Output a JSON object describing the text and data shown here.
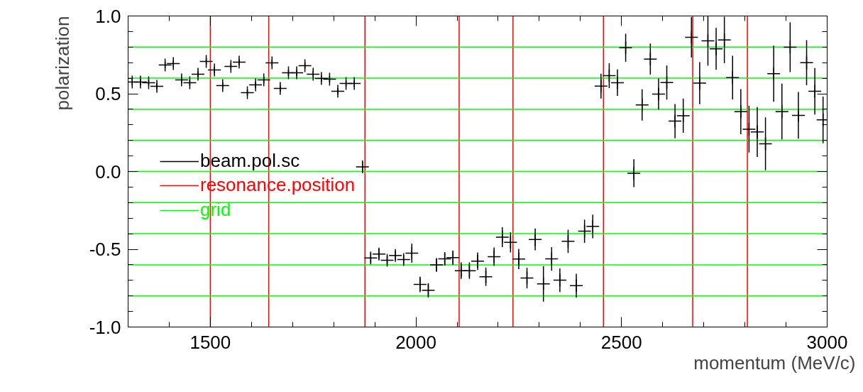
{
  "chart_data": {
    "type": "scatter",
    "xlabel": "momentum (MeV/c)",
    "ylabel": "polarization",
    "xlim": [
      1300,
      3000
    ],
    "ylim": [
      -1.0,
      1.0
    ],
    "xticks": [
      1500,
      2000,
      2500,
      3000
    ],
    "yticks": [
      {
        "value": -1.0,
        "label": "-1.0"
      },
      {
        "value": -0.5,
        "label": "-0.5"
      },
      {
        "value": 0.0,
        "label": "0.0"
      },
      {
        "value": 0.5,
        "label": "0.5"
      },
      {
        "value": 1.0,
        "label": "1.0"
      }
    ],
    "marker": "cross",
    "legend": "left",
    "x": [
      1310,
      1330,
      1350,
      1370,
      1390,
      1410,
      1430,
      1450,
      1470,
      1490,
      1510,
      1530,
      1550,
      1570,
      1590,
      1610,
      1630,
      1650,
      1670,
      1690,
      1710,
      1730,
      1750,
      1770,
      1790,
      1810,
      1830,
      1850,
      1870,
      1890,
      1910,
      1930,
      1950,
      1970,
      1990,
      2010,
      2030,
      2050,
      2070,
      2090,
      2110,
      2130,
      2150,
      2170,
      2190,
      2210,
      2230,
      2250,
      2270,
      2290,
      2310,
      2330,
      2350,
      2370,
      2390,
      2410,
      2430,
      2450,
      2470,
      2490,
      2510,
      2530,
      2550,
      2570,
      2590,
      2610,
      2630,
      2650,
      2670,
      2690,
      2710,
      2730,
      2750,
      2770,
      2790,
      2810,
      2830,
      2850,
      2870,
      2890,
      2910,
      2930,
      2950,
      2970,
      2990
    ],
    "series": [
      {
        "name": "beam.pol.sc",
        "color": "#000000",
        "values": [
          0.575,
          0.575,
          0.571,
          0.548,
          0.685,
          0.694,
          0.589,
          0.571,
          0.626,
          0.708,
          0.653,
          0.553,
          0.676,
          0.703,
          0.507,
          0.557,
          0.589,
          0.699,
          0.534,
          0.635,
          0.635,
          0.68,
          0.626,
          0.598,
          0.594,
          0.516,
          0.566,
          0.566,
          0.03,
          -0.556,
          -0.531,
          -0.571,
          -0.54,
          -0.566,
          -0.525,
          -0.726,
          -0.764,
          -0.601,
          -0.562,
          -0.554,
          -0.638,
          -0.638,
          -0.577,
          -0.677,
          -0.548,
          -0.422,
          -0.455,
          -0.563,
          -0.685,
          -0.437,
          -0.723,
          -0.562,
          -0.699,
          -0.449,
          -0.734,
          -0.384,
          -0.353,
          0.549,
          0.616,
          0.571,
          0.796,
          -0.011,
          0.428,
          0.723,
          0.498,
          0.572,
          0.324,
          0.359,
          0.863,
          0.568,
          0.84,
          0.789,
          0.846,
          0.604,
          0.385,
          0.272,
          0.254,
          0.178,
          0.629,
          0.385,
          0.799,
          0.361,
          0.7,
          0.516,
          0.332
        ],
        "errors": [
          0.02,
          0.02,
          0.02,
          0.02,
          0.02,
          0.02,
          0.02,
          0.02,
          0.02,
          0.02,
          0.02,
          0.02,
          0.02,
          0.02,
          0.02,
          0.02,
          0.02,
          0.02,
          0.02,
          0.02,
          0.02,
          0.02,
          0.02,
          0.02,
          0.02,
          0.02,
          0.02,
          0.02,
          0.03,
          0.033,
          0.034,
          0.03,
          0.03,
          0.03,
          0.062,
          0.05,
          0.046,
          0.044,
          0.043,
          0.046,
          0.053,
          0.053,
          0.056,
          0.059,
          0.059,
          0.064,
          0.065,
          0.065,
          0.066,
          0.07,
          0.114,
          0.076,
          0.076,
          0.075,
          0.076,
          0.075,
          0.076,
          0.08,
          0.08,
          0.085,
          0.09,
          0.09,
          0.1,
          0.1,
          0.1,
          0.11,
          0.11,
          0.11,
          0.13,
          0.135,
          0.16,
          0.135,
          0.15,
          0.14,
          0.145,
          0.15,
          0.16,
          0.17,
          0.18,
          0.18,
          0.16,
          0.15,
          0.145,
          0.15,
          0.15
        ]
      }
    ],
    "ref_lines": [
      {
        "axis": "x",
        "value": 1500,
        "label": "resonance.position",
        "color": "#ff0000"
      },
      {
        "axis": "x",
        "value": 1642,
        "color": "#ff0000"
      },
      {
        "axis": "x",
        "value": 1876,
        "color": "#ff0000"
      },
      {
        "axis": "x",
        "value": 2105,
        "color": "#ff0000"
      },
      {
        "axis": "x",
        "value": 2236,
        "color": "#ff0000"
      },
      {
        "axis": "x",
        "value": 2456,
        "color": "#ff0000"
      },
      {
        "axis": "x",
        "value": 2673,
        "color": "#ff0000"
      },
      {
        "axis": "x",
        "value": 2806,
        "color": "#ff0000"
      },
      {
        "axis": "y",
        "value": 0.8,
        "label": "grid",
        "color": "#00ff00"
      },
      {
        "axis": "y",
        "value": 0.6,
        "color": "#00ff00"
      },
      {
        "axis": "y",
        "value": 0.4,
        "color": "#00ff00"
      },
      {
        "axis": "y",
        "value": 0.2,
        "color": "#00ff00"
      },
      {
        "axis": "y",
        "value": 0.0,
        "color": "#00ff00"
      },
      {
        "axis": "y",
        "value": -0.2,
        "color": "#00ff00"
      },
      {
        "axis": "y",
        "value": -0.4,
        "color": "#00ff00"
      },
      {
        "axis": "y",
        "value": -0.6,
        "color": "#00ff00"
      },
      {
        "axis": "y",
        "value": -0.8,
        "color": "#00ff00"
      }
    ]
  }
}
